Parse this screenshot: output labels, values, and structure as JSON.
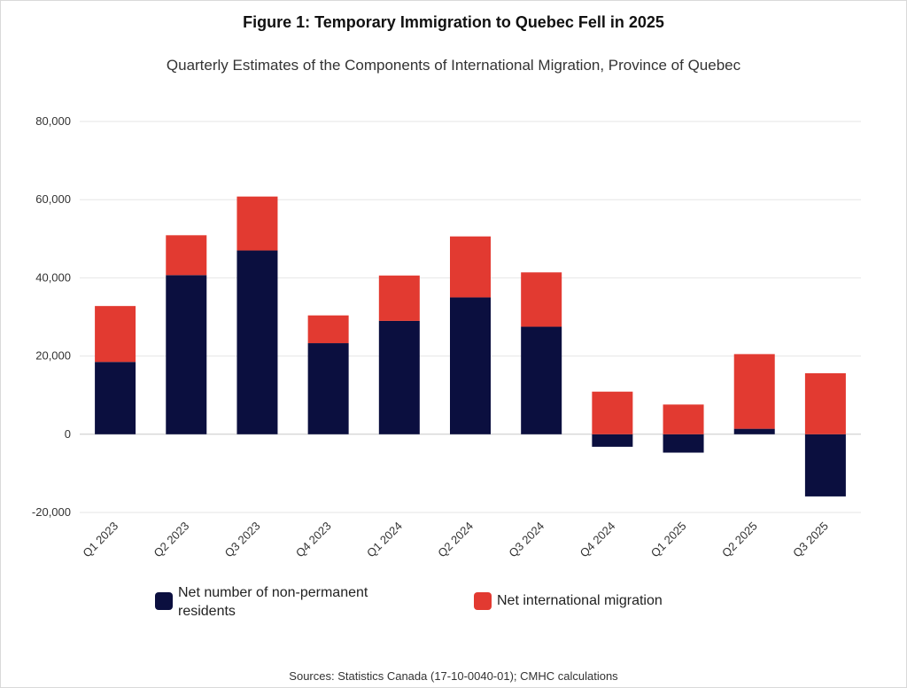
{
  "figure": {
    "title": "Figure 1: Temporary Immigration to Quebec Fell in 2025",
    "subtitle": "Quarterly Estimates of the Components of International Migration, Province of Quebec",
    "source": "Sources: Statistics Canada (17-10-0040-01); CMHC calculations"
  },
  "colors": {
    "npr": "#0b0f3f",
    "nim": "#e23a31",
    "grid": "#e6e6e6",
    "zero": "#c8c8c8"
  },
  "legend": {
    "npr_label": "Net number of non-permanent residents",
    "nim_label": "Net international migration"
  },
  "chart_data": {
    "type": "bar",
    "stacked": true,
    "title": "Figure 1: Temporary Immigration to Quebec Fell in 2025",
    "subtitle": "Quarterly Estimates of the Components of International Migration, Province of Quebec",
    "categories": [
      "Q1 2023",
      "Q2 2023",
      "Q3 2023",
      "Q4 2023",
      "Q1 2024",
      "Q2 2024",
      "Q3 2024",
      "Q4 2024",
      "Q1 2025",
      "Q2 2025",
      "Q3 2025"
    ],
    "series": [
      {
        "name": "Net number of non-permanent residents",
        "values": [
          18500,
          40700,
          47000,
          23300,
          29000,
          35000,
          27500,
          -3200,
          -4700,
          1400,
          -15900
        ]
      },
      {
        "name": "Net international migration",
        "values": [
          14300,
          10200,
          13800,
          7100,
          11600,
          15600,
          13900,
          10900,
          7600,
          19100,
          15600
        ]
      }
    ],
    "ylim": [
      -20000,
      80000
    ],
    "yticks": [
      -20000,
      0,
      20000,
      40000,
      60000,
      80000
    ],
    "ytick_labels": [
      "-20,000",
      "0",
      "20,000",
      "40,000",
      "60,000",
      "80,000"
    ],
    "grid": true,
    "legend_position": "bottom"
  }
}
